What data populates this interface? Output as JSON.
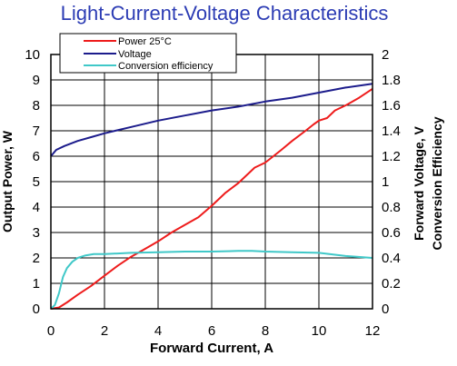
{
  "chart_data": {
    "type": "line",
    "title": "Light-Current-Voltage Characteristics",
    "xlabel": "Forward Current, A",
    "ylabel_left": "Output Power, W",
    "ylabel_right_1": "Forward Voltage, V",
    "ylabel_right_2": "Conversion Efficiency",
    "xlim": [
      0,
      12
    ],
    "ylim_left": [
      0,
      10
    ],
    "ylim_right": [
      0,
      2
    ],
    "x_ticks": [
      "0",
      "2",
      "4",
      "6",
      "8",
      "10",
      "12"
    ],
    "y_left_ticks": [
      "0",
      "1",
      "2",
      "3",
      "4",
      "5",
      "6",
      "7",
      "8",
      "9",
      "10"
    ],
    "y_right_ticks": [
      "0",
      "0.2",
      "0.4",
      "0.6",
      "0.8",
      "1",
      "1.2",
      "1.4",
      "1.6",
      "1.8",
      "2"
    ],
    "grid": true,
    "legend_position": "top-left",
    "colors": {
      "power": "#ee1c1c",
      "voltage": "#1c1c8c",
      "efficiency": "#40c8c8",
      "title": "#2c3cb4"
    },
    "series": [
      {
        "name": "Power 25°C",
        "axis": "left",
        "x": [
          0,
          0.3,
          0.6,
          1,
          1.5,
          2,
          2.5,
          3,
          3.5,
          4,
          4.5,
          5,
          5.5,
          6,
          6.5,
          7,
          7.3,
          7.6,
          8,
          8.3,
          8.6,
          9,
          9.5,
          9.8,
          10,
          10.3,
          10.6,
          11,
          11.5,
          12
        ],
        "values": [
          0,
          0.05,
          0.25,
          0.55,
          0.9,
          1.3,
          1.7,
          2.05,
          2.35,
          2.65,
          3.0,
          3.3,
          3.6,
          4.05,
          4.55,
          4.95,
          5.25,
          5.55,
          5.75,
          6.0,
          6.25,
          6.6,
          7.0,
          7.25,
          7.4,
          7.5,
          7.8,
          8.0,
          8.3,
          8.65
        ]
      },
      {
        "name": "Voltage",
        "axis": "right",
        "x": [
          0,
          0.2,
          0.5,
          1,
          1.5,
          2,
          3,
          4,
          5,
          6,
          7,
          8,
          9,
          10,
          11,
          12
        ],
        "values": [
          1.2,
          1.25,
          1.28,
          1.32,
          1.35,
          1.38,
          1.43,
          1.48,
          1.52,
          1.56,
          1.59,
          1.63,
          1.66,
          1.7,
          1.74,
          1.77
        ]
      },
      {
        "name": "Conversion efficiency",
        "axis": "right",
        "x": [
          0,
          0.15,
          0.3,
          0.45,
          0.6,
          0.8,
          1,
          1.3,
          1.6,
          2,
          3,
          4,
          5,
          6,
          7,
          7.5,
          8,
          9,
          10,
          11,
          12
        ],
        "values": [
          0,
          0.03,
          0.12,
          0.25,
          0.32,
          0.37,
          0.4,
          0.42,
          0.43,
          0.43,
          0.44,
          0.445,
          0.45,
          0.45,
          0.455,
          0.455,
          0.45,
          0.445,
          0.44,
          0.415,
          0.4
        ]
      }
    ]
  }
}
